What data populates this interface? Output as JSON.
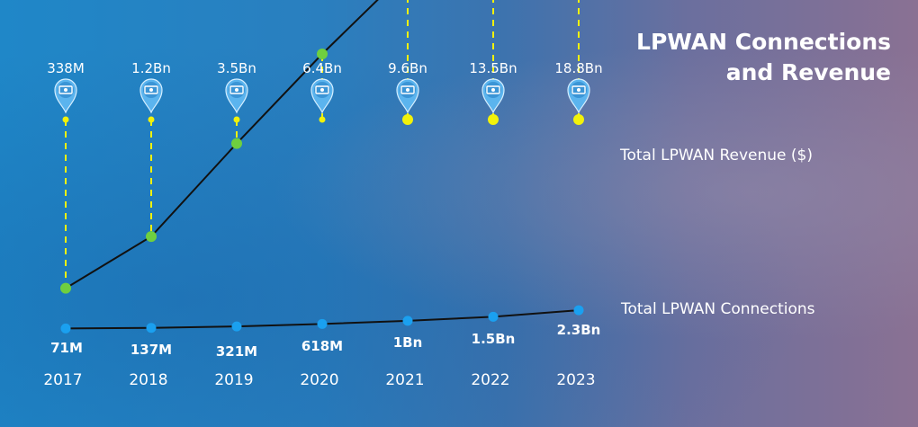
{
  "title": {
    "line1": "LPWAN Connections",
    "line2": "and Revenue"
  },
  "chart_data": {
    "type": "line",
    "categories": [
      "2017",
      "2018",
      "2019",
      "2020",
      "2021",
      "2022",
      "2023"
    ],
    "series": [
      {
        "name": "Total LPWAN  Revenue ($)",
        "values": [
          338000000,
          1200000000,
          3500000000,
          6400000000,
          9600000000,
          13500000000,
          18800000000
        ],
        "labels": [
          "338M",
          "1.2Bn",
          "3.5Bn",
          "6.4Bn",
          "9.6Bn",
          "13.5Bn",
          "18.8Bn"
        ],
        "color": "#6fcf3f"
      },
      {
        "name": "Total LPWAN Connections",
        "values": [
          71000000,
          137000000,
          321000000,
          618000000,
          1000000000,
          1500000000,
          2300000000
        ],
        "labels": [
          "71M",
          "137M",
          "321M",
          "618M",
          "1Bn",
          "1.5Bn",
          "2.3Bn"
        ],
        "color": "#1aa0f0"
      }
    ],
    "marker_color": "#f2f20a",
    "line_color": "#111111",
    "pin_icon": "money-pin-icon",
    "grid": false
  }
}
